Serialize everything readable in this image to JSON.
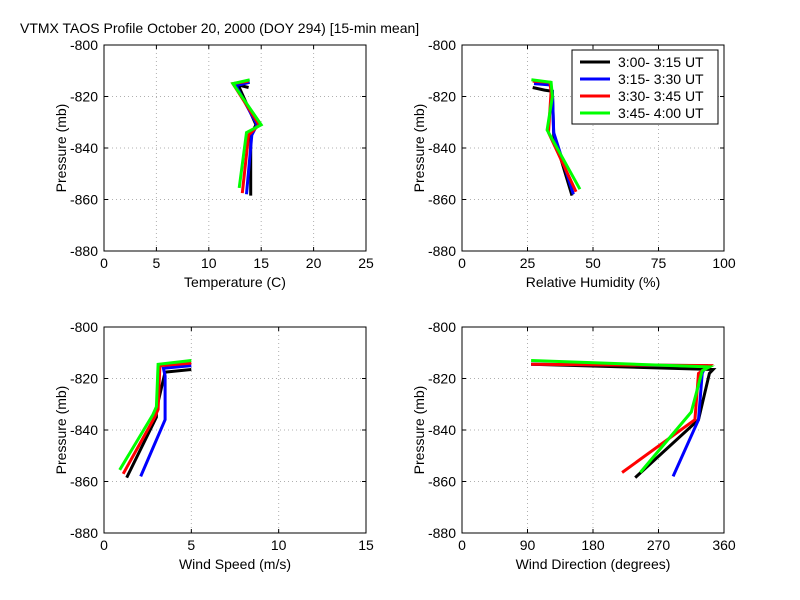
{
  "figure_title": "VTMX TAOS Profile   October 20, 2000 (DOY 294) [15-min mean]",
  "colors": {
    "3:00- 3:15 UT": "#000000",
    "3:15- 3:30 UT": "#0000ff",
    "3:30- 3:45 UT": "#ff0000",
    "3:45- 4:00 UT": "#00ff00"
  },
  "legend": [
    "3:00- 3:15 UT",
    "3:15- 3:30 UT",
    "3:30- 3:45 UT",
    "3:45- 4:00 UT"
  ],
  "chart_data": [
    {
      "type": "line",
      "xlabel": "Temperature (C)",
      "ylabel": "Pressure (mb)",
      "xlim": [
        0,
        25
      ],
      "ylim": [
        -880,
        -800
      ],
      "xticks": [
        "0",
        "5",
        "10",
        "15",
        "20",
        "25"
      ],
      "yticks": [
        "-800",
        "-820",
        "-840",
        "-860",
        "-880"
      ],
      "grid": true,
      "series": [
        {
          "name": "3:00- 3:15 UT",
          "points": [
            [
              13.8,
              -816.5
            ],
            [
              12.8,
              -815.5
            ],
            [
              14.5,
              -831
            ],
            [
              14,
              -835
            ],
            [
              14,
              -858.5
            ]
          ]
        },
        {
          "name": "3:15- 3:30 UT",
          "points": [
            [
              13.9,
              -814.5
            ],
            [
              12.6,
              -815.8
            ],
            [
              14.6,
              -831
            ],
            [
              14.1,
              -835
            ],
            [
              13.6,
              -858
            ]
          ]
        },
        {
          "name": "3:30- 3:45 UT",
          "points": [
            [
              13.8,
              -814
            ],
            [
              12.3,
              -815
            ],
            [
              14.8,
              -831
            ],
            [
              13.8,
              -835
            ],
            [
              13.2,
              -857.5
            ]
          ]
        },
        {
          "name": "3:45- 4:00 UT",
          "points": [
            [
              13.9,
              -813.5
            ],
            [
              12.3,
              -815
            ],
            [
              15,
              -831
            ],
            [
              13.6,
              -834
            ],
            [
              12.9,
              -855.5
            ]
          ]
        }
      ]
    },
    {
      "type": "line",
      "xlabel": "Relative Humidity (%)",
      "ylabel": "Pressure (mb)",
      "xlim": [
        0,
        100
      ],
      "ylim": [
        -880,
        -800
      ],
      "xticks": [
        "0",
        "25",
        "50",
        "75",
        "100"
      ],
      "yticks": [
        "-800",
        "-820",
        "-840",
        "-860",
        "-880"
      ],
      "grid": true,
      "legend_position": "top-right",
      "series": [
        {
          "name": "3:00- 3:15 UT",
          "points": [
            [
              27,
              -816.5
            ],
            [
              31.5,
              -817.5
            ],
            [
              34.5,
              -818
            ],
            [
              35,
              -835
            ],
            [
              42,
              -858.5
            ]
          ]
        },
        {
          "name": "3:15- 3:30 UT",
          "points": [
            [
              27.5,
              -815
            ],
            [
              33.5,
              -815.5
            ],
            [
              34.5,
              -818
            ],
            [
              35,
              -834
            ],
            [
              42.5,
              -858
            ]
          ]
        },
        {
          "name": "3:30- 3:45 UT",
          "points": [
            [
              27,
              -814
            ],
            [
              33.5,
              -814.5
            ],
            [
              34,
              -818
            ],
            [
              33,
              -834
            ],
            [
              43.5,
              -857
            ]
          ]
        },
        {
          "name": "3:45- 4:00 UT",
          "points": [
            [
              26.5,
              -813.5
            ],
            [
              34,
              -814.5
            ],
            [
              34.5,
              -820
            ],
            [
              32.5,
              -833
            ],
            [
              45,
              -856
            ]
          ]
        }
      ]
    },
    {
      "type": "line",
      "xlabel": "Wind Speed (m/s)",
      "ylabel": "Pressure (mb)",
      "xlim": [
        0,
        15
      ],
      "ylim": [
        -880,
        -800
      ],
      "xticks": [
        "0",
        "5",
        "10",
        "15"
      ],
      "yticks": [
        "-800",
        "-820",
        "-840",
        "-860",
        "-880"
      ],
      "grid": true,
      "series": [
        {
          "name": "3:00- 3:15 UT",
          "points": [
            [
              5,
              -816.5
            ],
            [
              3.5,
              -817.5
            ],
            [
              3,
              -832
            ],
            [
              3,
              -835
            ],
            [
              1.3,
              -858.5
            ]
          ]
        },
        {
          "name": "3:15- 3:30 UT",
          "points": [
            [
              5,
              -815
            ],
            [
              3.4,
              -816
            ],
            [
              3.5,
              -819
            ],
            [
              3.5,
              -836
            ],
            [
              2.1,
              -858
            ]
          ]
        },
        {
          "name": "3:30- 3:45 UT",
          "points": [
            [
              5,
              -814
            ],
            [
              3.2,
              -815
            ],
            [
              3.1,
              -832
            ],
            [
              2.9,
              -835
            ],
            [
              1.1,
              -857
            ]
          ]
        },
        {
          "name": "3:45- 4:00 UT",
          "points": [
            [
              5,
              -813
            ],
            [
              3.1,
              -814.5
            ],
            [
              3,
              -831
            ],
            [
              2.8,
              -834
            ],
            [
              0.9,
              -855.5
            ]
          ]
        }
      ]
    },
    {
      "type": "line",
      "xlabel": "Wind Direction (degrees)",
      "ylabel": "Pressure (mb)",
      "xlim": [
        0,
        360
      ],
      "ylim": [
        -880,
        -800
      ],
      "xticks": [
        "0",
        "90",
        "180",
        "270",
        "360"
      ],
      "yticks": [
        "-800",
        "-820",
        "-840",
        "-860",
        "-880"
      ],
      "grid": true,
      "series": [
        {
          "name": "3:00- 3:15 UT",
          "points": [
            [
              95,
              -814.5
            ],
            [
              345,
              -816.5
            ],
            [
              340,
              -818
            ],
            [
              325,
              -836
            ],
            [
              238,
              -858.5
            ]
          ]
        },
        {
          "name": "3:15- 3:30 UT",
          "points": [
            [
              95,
              -814.5
            ],
            [
              335,
              -815
            ],
            [
              330,
              -818
            ],
            [
              325,
              -836
            ],
            [
              290,
              -858
            ]
          ]
        },
        {
          "name": "3:30- 3:45 UT",
          "points": [
            [
              95,
              -814.5
            ],
            [
              340,
              -815
            ],
            [
              325,
              -818
            ],
            [
              320,
              -836
            ],
            [
              220,
              -856.5
            ]
          ]
        },
        {
          "name": "3:45- 4:00 UT",
          "points": [
            [
              95,
              -813
            ],
            [
              340,
              -815.5
            ],
            [
              330,
              -817
            ],
            [
              315,
              -833
            ],
            [
              245,
              -856.5
            ]
          ]
        }
      ]
    }
  ]
}
